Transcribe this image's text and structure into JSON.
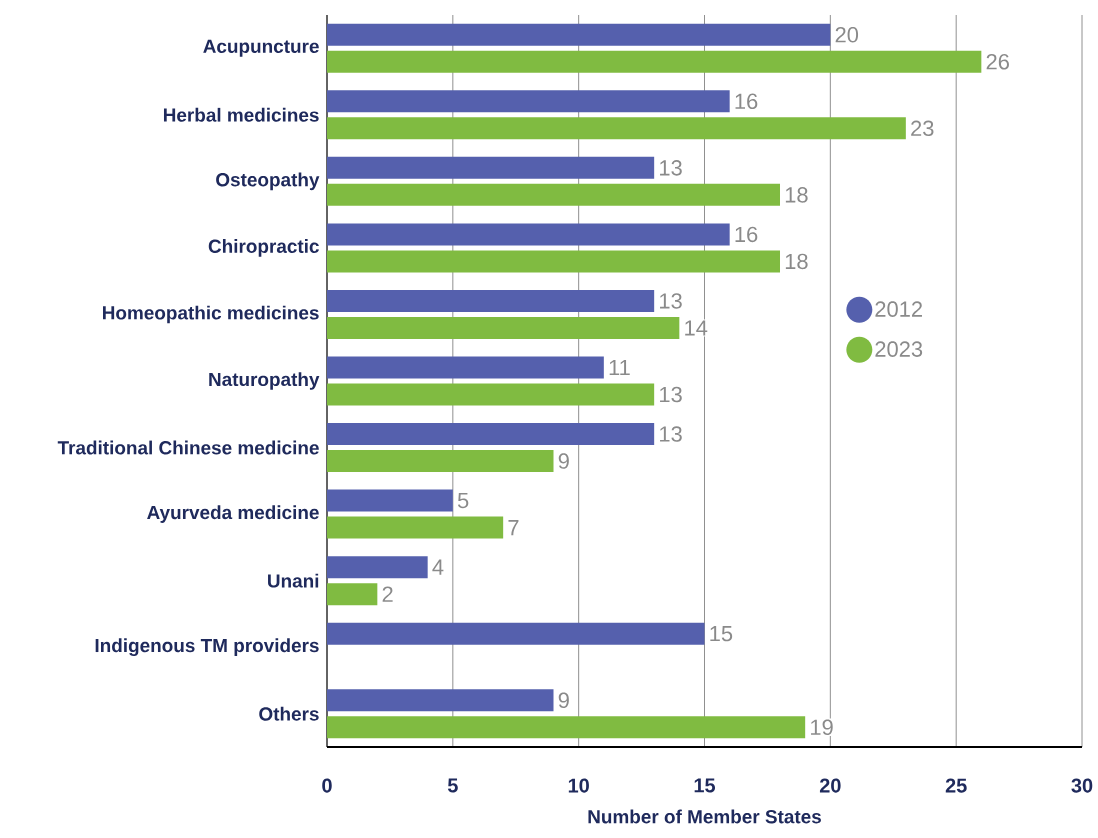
{
  "chart_data": {
    "type": "bar",
    "orientation": "horizontal",
    "xlabel": "Number of Member States",
    "categories": [
      "Acupuncture",
      "Herbal medicines",
      "Osteopathy",
      "Chiropractic",
      "Homeopathic medicines",
      "Naturopathy",
      "Traditional Chinese medicine",
      "Ayurveda medicine",
      "Unani",
      "Indigenous TM providers",
      "Others"
    ],
    "series": [
      {
        "name": "2012",
        "color": "#5560ad",
        "values": [
          20,
          16,
          13,
          16,
          13,
          11,
          13,
          5,
          4,
          15,
          9
        ]
      },
      {
        "name": "2023",
        "color": "#80bb41",
        "values": [
          26,
          23,
          18,
          18,
          14,
          13,
          9,
          7,
          2,
          null,
          19
        ]
      }
    ],
    "xlim": [
      0,
      30
    ],
    "xticks": [
      0,
      5,
      10,
      15,
      20,
      25,
      30
    ],
    "grid": "x",
    "legend": "right",
    "data_labels": true
  }
}
